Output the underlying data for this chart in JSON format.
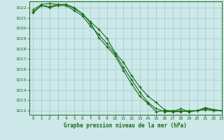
{
  "title": "Graphe pression niveau de la mer (hPa)",
  "background_color": "#cce8e8",
  "grid_color": "#aacece",
  "line_color": "#1a6b1a",
  "xlim": [
    -0.5,
    23
  ],
  "ylim": [
    1011.6,
    1022.6
  ],
  "yticks": [
    1012,
    1013,
    1014,
    1015,
    1016,
    1017,
    1018,
    1019,
    1020,
    1021,
    1022
  ],
  "xticks": [
    0,
    1,
    2,
    3,
    4,
    5,
    6,
    7,
    8,
    9,
    10,
    11,
    12,
    13,
    14,
    15,
    16,
    17,
    18,
    19,
    20,
    21,
    22,
    23
  ],
  "series": [
    [
      1021.5,
      1022.2,
      1022.0,
      1022.2,
      1022.2,
      1021.7,
      1021.2,
      1020.2,
      1019.4,
      1018.5,
      1017.5,
      1016.2,
      1015.0,
      1013.8,
      1012.8,
      1012.2,
      1011.9,
      1011.9,
      1011.9,
      1012.0,
      1012.0,
      1012.3,
      1012.1,
      1012.0
    ],
    [
      1021.8,
      1022.3,
      1022.4,
      1022.3,
      1022.3,
      1022.0,
      1021.4,
      1020.6,
      1019.9,
      1019.0,
      1017.6,
      1016.7,
      1015.4,
      1014.3,
      1013.4,
      1012.8,
      1012.1,
      1011.9,
      1012.2,
      1011.9,
      1012.0,
      1012.2,
      1012.1,
      1012.0
    ],
    [
      1021.6,
      1022.2,
      1022.1,
      1022.3,
      1022.3,
      1021.9,
      1021.4,
      1020.5,
      1019.1,
      1018.2,
      1017.3,
      1015.9,
      1014.6,
      1013.4,
      1012.7,
      1011.9,
      1012.0,
      1012.0,
      1012.0,
      1011.9,
      1012.0,
      1012.1,
      1012.0,
      1012.0
    ]
  ]
}
